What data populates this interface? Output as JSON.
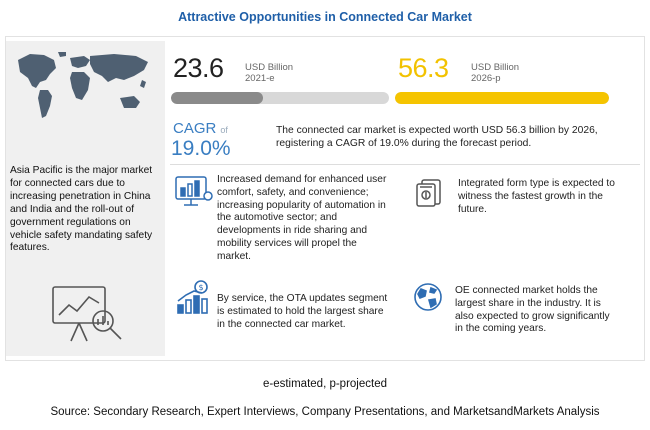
{
  "title": "Attractive Opportunities in Connected Car Market",
  "left_panel": {
    "text": "Asia Pacific is the major market for connected cars due to increasing penetration in China and India and the roll-out of government regulations on vehicle safety mandating safety features."
  },
  "stat_2021": {
    "value": "23.6",
    "unit": "USD Billion",
    "year": "2021-e",
    "bar_fraction": 0.42,
    "color": "#8a8a8a"
  },
  "stat_2026": {
    "value": "56.3",
    "unit": "USD Billion",
    "year": "2026-p",
    "bar_fraction": 1.0,
    "color": "#f5c400"
  },
  "cagr": {
    "label": "CAGR",
    "of": "of",
    "value": "19.0%",
    "description": "The connected car market is expected worth USD 56.3 billion by 2026, registering a CAGR of 19.0% during the forecast period."
  },
  "items": [
    {
      "icon": "comfort-dashboard-icon",
      "text": "Increased demand for enhanced user comfort, safety, and convenience; increasing popularity of automation in the automotive sector; and developments in ride sharing and mobility services will propel the market."
    },
    {
      "icon": "integrated-form-icon",
      "text": "Integrated form type is expected to witness the fastest growth in the future."
    },
    {
      "icon": "growth-chart-icon",
      "text": "By service, the OTA updates segment is estimated to hold the largest share in the connected car market."
    },
    {
      "icon": "globe-icon",
      "text": "OE connected market holds the largest share in the industry. It is also expected to grow significantly in the coming years."
    }
  ],
  "footnote": "e-estimated, p-projected",
  "source": "Source: Secondary Research, Expert Interviews, Company Presentations, and MarketsandMarkets Analysis"
}
